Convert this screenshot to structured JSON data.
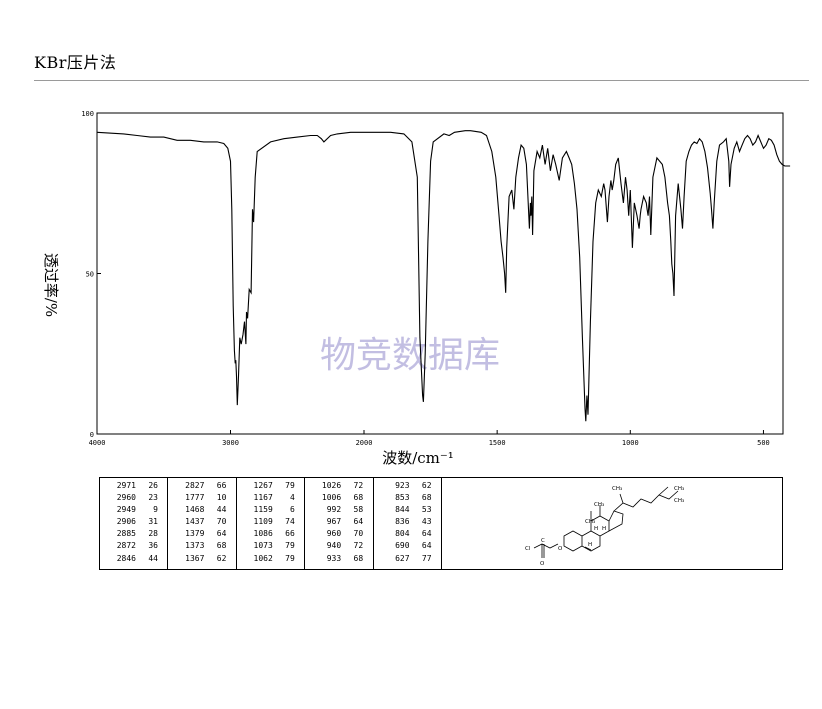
{
  "header": {
    "method": "KBr压片法"
  },
  "watermark": "物竞数据库",
  "chart_data": {
    "type": "line",
    "title": "",
    "xlabel": "波数/cm⁻¹",
    "ylabel": "透过率/%",
    "xlim": [
      4000,
      400
    ],
    "ylim": [
      0,
      100
    ],
    "x_ticks": [
      "4000",
      "3000",
      "2000",
      "1500",
      "1000",
      "500"
    ],
    "y_ticks": [
      "100",
      "50",
      "0"
    ],
    "grid": false,
    "series": [
      {
        "points": [
          [
            4000,
            94
          ],
          [
            3800,
            93.5
          ],
          [
            3700,
            93
          ],
          [
            3600,
            92.5
          ],
          [
            3500,
            92.5
          ],
          [
            3400,
            91.5
          ],
          [
            3300,
            91.5
          ],
          [
            3200,
            91
          ],
          [
            3100,
            91
          ],
          [
            3050,
            90.5
          ],
          [
            3020,
            89
          ],
          [
            3000,
            85
          ],
          [
            2990,
            70
          ],
          [
            2980,
            40
          ],
          [
            2971,
            26
          ],
          [
            2965,
            22
          ],
          [
            2960,
            23
          ],
          [
            2955,
            18
          ],
          [
            2949,
            9
          ],
          [
            2940,
            18
          ],
          [
            2930,
            30
          ],
          [
            2920,
            28
          ],
          [
            2906,
            31
          ],
          [
            2895,
            35
          ],
          [
            2885,
            28
          ],
          [
            2880,
            38
          ],
          [
            2872,
            36
          ],
          [
            2860,
            45
          ],
          [
            2846,
            44
          ],
          [
            2835,
            70
          ],
          [
            2827,
            66
          ],
          [
            2815,
            80
          ],
          [
            2800,
            88
          ],
          [
            2700,
            91
          ],
          [
            2600,
            92
          ],
          [
            2500,
            92.5
          ],
          [
            2400,
            93
          ],
          [
            2350,
            93
          ],
          [
            2320,
            92
          ],
          [
            2300,
            91
          ],
          [
            2250,
            93
          ],
          [
            2200,
            93.5
          ],
          [
            2100,
            94
          ],
          [
            2000,
            94
          ],
          [
            1900,
            94
          ],
          [
            1850,
            93.5
          ],
          [
            1820,
            91
          ],
          [
            1800,
            80
          ],
          [
            1790,
            30
          ],
          [
            1780,
            12
          ],
          [
            1777,
            10
          ],
          [
            1770,
            25
          ],
          [
            1760,
            60
          ],
          [
            1750,
            85
          ],
          [
            1740,
            91
          ],
          [
            1700,
            93.5
          ],
          [
            1680,
            93
          ],
          [
            1660,
            94
          ],
          [
            1620,
            94.5
          ],
          [
            1600,
            94.5
          ],
          [
            1560,
            94
          ],
          [
            1540,
            93
          ],
          [
            1520,
            88
          ],
          [
            1505,
            80
          ],
          [
            1495,
            70
          ],
          [
            1485,
            60
          ],
          [
            1478,
            55
          ],
          [
            1472,
            50
          ],
          [
            1468,
            44
          ],
          [
            1464,
            58
          ],
          [
            1455,
            74
          ],
          [
            1445,
            76
          ],
          [
            1437,
            70
          ],
          [
            1430,
            80
          ],
          [
            1420,
            86
          ],
          [
            1410,
            90
          ],
          [
            1400,
            89
          ],
          [
            1390,
            84
          ],
          [
            1379,
            64
          ],
          [
            1375,
            72
          ],
          [
            1373,
            68
          ],
          [
            1370,
            74
          ],
          [
            1367,
            62
          ],
          [
            1362,
            82
          ],
          [
            1350,
            88
          ],
          [
            1340,
            86
          ],
          [
            1330,
            90
          ],
          [
            1320,
            84
          ],
          [
            1310,
            89
          ],
          [
            1300,
            82
          ],
          [
            1290,
            87
          ],
          [
            1280,
            84
          ],
          [
            1267,
            79
          ],
          [
            1255,
            86
          ],
          [
            1240,
            88
          ],
          [
            1230,
            86
          ],
          [
            1220,
            84
          ],
          [
            1210,
            78
          ],
          [
            1200,
            70
          ],
          [
            1190,
            55
          ],
          [
            1180,
            30
          ],
          [
            1170,
            8
          ],
          [
            1167,
            4
          ],
          [
            1163,
            12
          ],
          [
            1159,
            6
          ],
          [
            1150,
            35
          ],
          [
            1140,
            60
          ],
          [
            1130,
            72
          ],
          [
            1120,
            76
          ],
          [
            1109,
            74
          ],
          [
            1100,
            78
          ],
          [
            1095,
            76
          ],
          [
            1086,
            66
          ],
          [
            1080,
            74
          ],
          [
            1073,
            79
          ],
          [
            1068,
            76
          ],
          [
            1062,
            79
          ],
          [
            1055,
            84
          ],
          [
            1045,
            86
          ],
          [
            1035,
            78
          ],
          [
            1026,
            72
          ],
          [
            1018,
            80
          ],
          [
            1012,
            76
          ],
          [
            1006,
            68
          ],
          [
            1000,
            76
          ],
          [
            992,
            58
          ],
          [
            985,
            72
          ],
          [
            975,
            68
          ],
          [
            967,
            64
          ],
          [
            963,
            68
          ],
          [
            960,
            70
          ],
          [
            950,
            74
          ],
          [
            940,
            72
          ],
          [
            937,
            70
          ],
          [
            933,
            68
          ],
          [
            928,
            74
          ],
          [
            923,
            62
          ],
          [
            915,
            80
          ],
          [
            900,
            86
          ],
          [
            880,
            84
          ],
          [
            870,
            80
          ],
          [
            860,
            72
          ],
          [
            853,
            68
          ],
          [
            848,
            60
          ],
          [
            844,
            53
          ],
          [
            840,
            50
          ],
          [
            836,
            43
          ],
          [
            830,
            68
          ],
          [
            820,
            78
          ],
          [
            810,
            70
          ],
          [
            804,
            64
          ],
          [
            798,
            74
          ],
          [
            790,
            85
          ],
          [
            780,
            88
          ],
          [
            770,
            90
          ],
          [
            760,
            91
          ],
          [
            750,
            90.5
          ],
          [
            740,
            92
          ],
          [
            730,
            91
          ],
          [
            720,
            88
          ],
          [
            710,
            83
          ],
          [
            700,
            75
          ],
          [
            695,
            70
          ],
          [
            690,
            64
          ],
          [
            685,
            72
          ],
          [
            675,
            85
          ],
          [
            665,
            90
          ],
          [
            650,
            91
          ],
          [
            640,
            92
          ],
          [
            630,
            85
          ],
          [
            627,
            77
          ],
          [
            622,
            84
          ],
          [
            610,
            89
          ],
          [
            600,
            91
          ],
          [
            590,
            88
          ],
          [
            580,
            90
          ],
          [
            570,
            92
          ],
          [
            560,
            93
          ],
          [
            550,
            92
          ],
          [
            540,
            90
          ],
          [
            530,
            91
          ],
          [
            520,
            93
          ],
          [
            510,
            91
          ],
          [
            500,
            89
          ],
          [
            490,
            90
          ],
          [
            480,
            92
          ],
          [
            470,
            91.5
          ],
          [
            460,
            90
          ],
          [
            450,
            87
          ],
          [
            440,
            85
          ],
          [
            430,
            84
          ],
          [
            420,
            83.5
          ],
          [
            410,
            83.5
          ],
          [
            400,
            83.5
          ]
        ]
      }
    ]
  },
  "peak_table": {
    "columns": [
      [
        [
          "2971",
          "26"
        ],
        [
          "2960",
          "23"
        ],
        [
          "2949",
          "9"
        ],
        [
          "2906",
          "31"
        ],
        [
          "2885",
          "28"
        ],
        [
          "2872",
          "36"
        ],
        [
          "2846",
          "44"
        ]
      ],
      [
        [
          "2827",
          "66"
        ],
        [
          "1777",
          "10"
        ],
        [
          "1468",
          "44"
        ],
        [
          "1437",
          "70"
        ],
        [
          "1379",
          "64"
        ],
        [
          "1373",
          "68"
        ],
        [
          "1367",
          "62"
        ]
      ],
      [
        [
          "1267",
          "79"
        ],
        [
          "1167",
          "4"
        ],
        [
          "1159",
          "6"
        ],
        [
          "1109",
          "74"
        ],
        [
          "1086",
          "66"
        ],
        [
          "1073",
          "79"
        ],
        [
          "1062",
          "79"
        ]
      ],
      [
        [
          "1026",
          "72"
        ],
        [
          "1006",
          "68"
        ],
        [
          "992",
          "58"
        ],
        [
          "967",
          "64"
        ],
        [
          "960",
          "70"
        ],
        [
          "940",
          "72"
        ],
        [
          "933",
          "68"
        ]
      ],
      [
        [
          "923",
          "62"
        ],
        [
          "853",
          "68"
        ],
        [
          "844",
          "53"
        ],
        [
          "836",
          "43"
        ],
        [
          "804",
          "64"
        ],
        [
          "690",
          "64"
        ],
        [
          "627",
          "77"
        ]
      ]
    ]
  },
  "structure": {
    "atoms": {
      "cl": "Cl",
      "c": "C",
      "o_ring": "O",
      "o_carbonyl": "O",
      "ch3_a": "CH₃",
      "ch3_b": "CH₃",
      "ch3_c": "CH₃",
      "ch3_d": "CH₃",
      "ch3_e": "CH₃",
      "h_a": "H",
      "h_b": "H",
      "h_c": "H"
    }
  }
}
